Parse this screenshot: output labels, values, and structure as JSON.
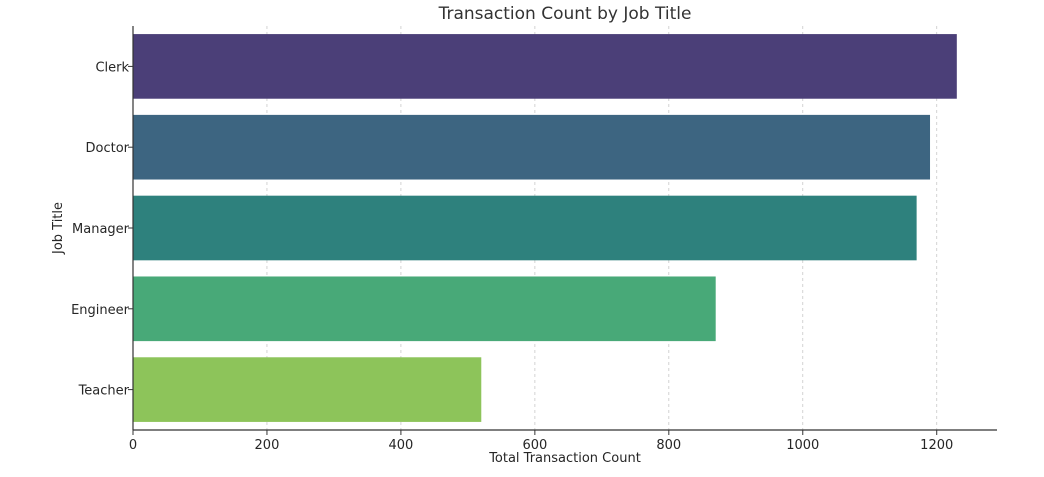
{
  "chart_data": {
    "type": "bar",
    "orientation": "horizontal",
    "title": "Transaction Count by Job Title",
    "xlabel": "Total Transaction Count",
    "ylabel": "Job Title",
    "categories": [
      "Clerk",
      "Doctor",
      "Manager",
      "Engineer",
      "Teacher"
    ],
    "values": [
      1230,
      1190,
      1170,
      870,
      520
    ],
    "colors": [
      "#4b3f78",
      "#3d6581",
      "#2e817d",
      "#48a978",
      "#8dc45a"
    ],
    "xlim": [
      0,
      1290
    ],
    "xticks": [
      0,
      200,
      400,
      600,
      800,
      1000,
      1200
    ],
    "grid": "x-dashed",
    "legend": "none"
  }
}
